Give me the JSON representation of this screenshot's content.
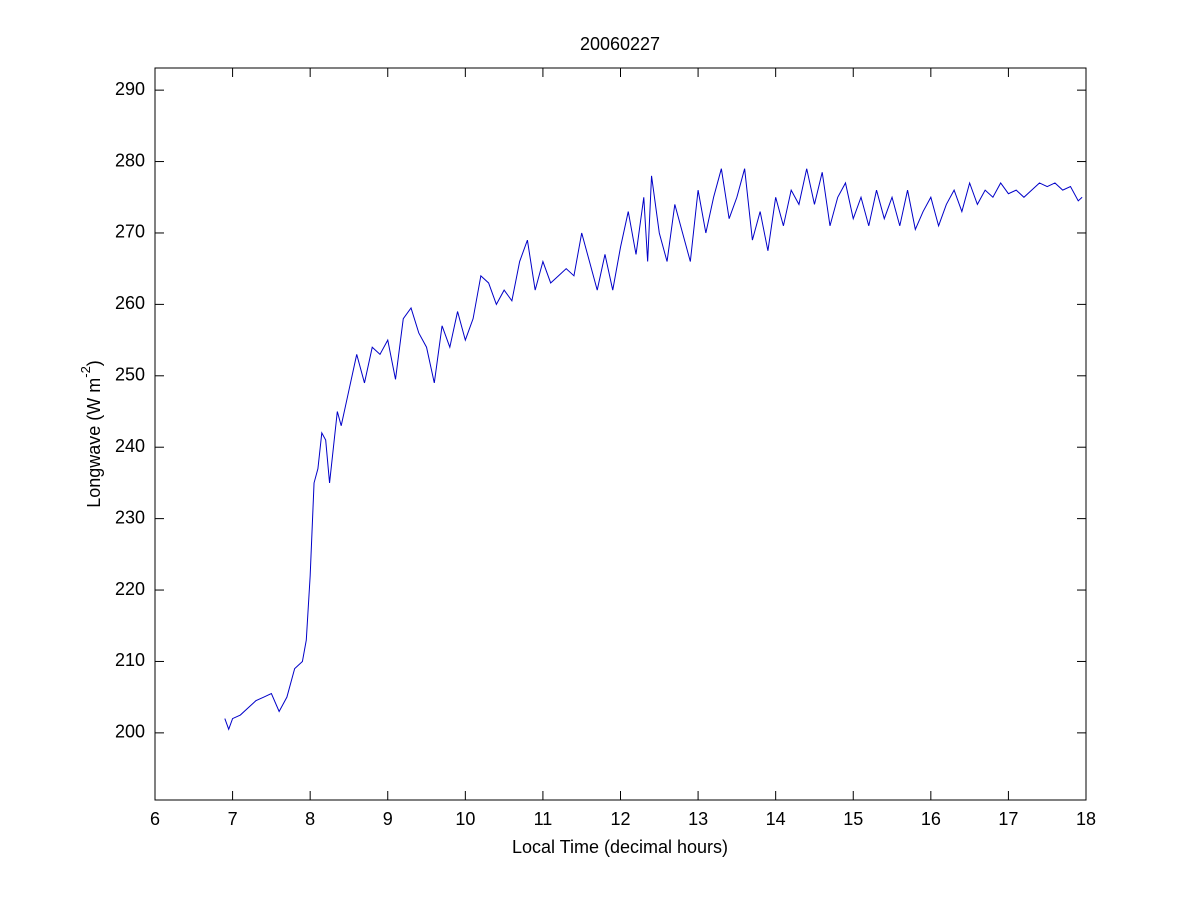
{
  "chart_data": {
    "type": "line",
    "title": "20060227",
    "xlabel": "Local Time (decimal hours)",
    "ylabel": "Longwave (W m",
    "ylabel_sup": "-2",
    "ylabel_end": ")",
    "xlim": [
      6,
      18
    ],
    "xticks": [
      6,
      7,
      8,
      9,
      10,
      11,
      12,
      13,
      14,
      15,
      16,
      17,
      18
    ],
    "ylim": [
      190.6,
      293.1
    ],
    "yticks": [
      200,
      210,
      220,
      230,
      240,
      250,
      260,
      270,
      280,
      290
    ],
    "grid": false,
    "series": [
      {
        "color": "#0000c8",
        "x": [
          6.9,
          6.95,
          7.0,
          7.1,
          7.2,
          7.3,
          7.4,
          7.5,
          7.6,
          7.7,
          7.8,
          7.9,
          7.95,
          8.0,
          8.05,
          8.1,
          8.15,
          8.2,
          8.25,
          8.3,
          8.35,
          8.4,
          8.5,
          8.6,
          8.7,
          8.8,
          8.9,
          9.0,
          9.1,
          9.2,
          9.3,
          9.4,
          9.5,
          9.6,
          9.7,
          9.8,
          9.9,
          10.0,
          10.1,
          10.2,
          10.3,
          10.4,
          10.5,
          10.6,
          10.7,
          10.8,
          10.9,
          11.0,
          11.1,
          11.2,
          11.3,
          11.4,
          11.5,
          11.6,
          11.7,
          11.8,
          11.9,
          12.0,
          12.1,
          12.2,
          12.3,
          12.35,
          12.4,
          12.5,
          12.6,
          12.7,
          12.8,
          12.9,
          13.0,
          13.1,
          13.2,
          13.3,
          13.4,
          13.5,
          13.6,
          13.7,
          13.8,
          13.9,
          14.0,
          14.1,
          14.2,
          14.3,
          14.4,
          14.5,
          14.6,
          14.7,
          14.8,
          14.9,
          15.0,
          15.1,
          15.2,
          15.3,
          15.4,
          15.5,
          15.6,
          15.7,
          15.8,
          15.9,
          16.0,
          16.1,
          16.2,
          16.3,
          16.4,
          16.5,
          16.6,
          16.7,
          16.8,
          16.9,
          17.0,
          17.1,
          17.2,
          17.3,
          17.4,
          17.5,
          17.6,
          17.7,
          17.8,
          17.9,
          17.95
        ],
        "values": [
          202,
          200.5,
          202,
          202.5,
          203.5,
          204.5,
          205,
          205.5,
          203,
          205,
          209,
          210,
          213,
          222,
          235,
          237,
          242,
          241,
          235,
          240,
          245,
          243,
          248,
          253,
          249,
          254,
          253,
          255,
          249.5,
          258,
          259.5,
          256,
          254,
          249,
          257,
          254,
          259,
          255,
          258,
          264,
          263,
          260,
          262,
          260.5,
          266,
          269,
          262,
          266,
          263,
          264,
          265,
          264,
          270,
          266,
          262,
          267,
          262,
          268,
          273,
          267,
          275,
          266,
          278,
          270,
          266,
          274,
          270,
          266,
          276,
          270,
          275,
          279,
          272,
          275,
          279,
          269,
          273,
          267.5,
          275,
          271,
          276,
          274,
          279,
          274,
          278.5,
          271,
          275,
          277,
          272,
          275,
          271,
          276,
          272,
          275,
          271,
          276,
          270.5,
          273,
          275,
          271,
          274,
          276,
          273,
          277,
          274,
          276,
          275,
          277,
          275.5,
          276,
          275,
          276,
          277,
          276.5,
          277,
          276,
          276.5,
          274.5,
          275
        ]
      }
    ]
  }
}
